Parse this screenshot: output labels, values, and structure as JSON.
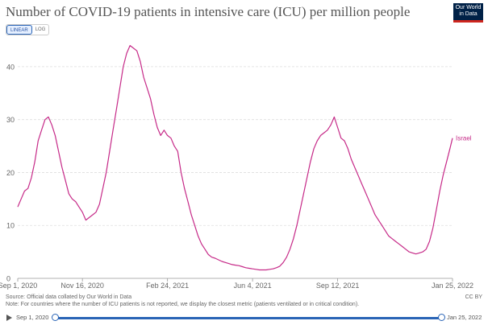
{
  "header": {
    "title": "Number of COVID-19 patients in intensive care (ICU) per million people",
    "logo_line1": "Our World",
    "logo_line2": "in Data"
  },
  "controls": {
    "linear_label": "LINEAR",
    "log_label": "LOG",
    "active": "linear"
  },
  "footer": {
    "source": "Source: Official data collated by Our World in Data",
    "note": "Note: For countries where the number of ICU patients is not reported, we display the closest metric (patients ventilated or in critical condition).",
    "license": "CC BY"
  },
  "timeline": {
    "start_label": "Sep 1, 2020",
    "end_label": "Jan 25, 2022"
  },
  "colors": {
    "series": "#c62a88",
    "grid": "#dddddd",
    "axis_text": "#666666",
    "timeline": "#2a64b6"
  },
  "chart_data": {
    "type": "line",
    "title": "Number of COVID-19 patients in intensive care (ICU) per million people",
    "xlabel": "",
    "ylabel": "",
    "x_range": [
      "2020-09-01",
      "2022-01-25"
    ],
    "ylim": [
      0,
      45
    ],
    "yticks": [
      0,
      10,
      20,
      30,
      40
    ],
    "xtick_labels": [
      {
        "date": "2020-09-01",
        "label": "Sep 1, 2020"
      },
      {
        "date": "2020-11-16",
        "label": "Nov 16, 2020"
      },
      {
        "date": "2021-02-24",
        "label": "Feb 24, 2021"
      },
      {
        "date": "2021-06-04",
        "label": "Jun 4, 2021"
      },
      {
        "date": "2021-09-12",
        "label": "Sep 12, 2021"
      },
      {
        "date": "2022-01-25",
        "label": "Jan 25, 2022"
      }
    ],
    "grid": "horizontal",
    "series": [
      {
        "name": "Israel",
        "points": [
          [
            "2020-09-01",
            13.5
          ],
          [
            "2020-09-05",
            15.0
          ],
          [
            "2020-09-09",
            16.5
          ],
          [
            "2020-09-13",
            17.0
          ],
          [
            "2020-09-17",
            19.0
          ],
          [
            "2020-09-21",
            22.0
          ],
          [
            "2020-09-25",
            26.0
          ],
          [
            "2020-09-29",
            28.0
          ],
          [
            "2020-10-03",
            30.0
          ],
          [
            "2020-10-07",
            30.5
          ],
          [
            "2020-10-11",
            29.0
          ],
          [
            "2020-10-15",
            27.0
          ],
          [
            "2020-10-19",
            24.0
          ],
          [
            "2020-10-23",
            21.0
          ],
          [
            "2020-10-27",
            18.5
          ],
          [
            "2020-10-31",
            16.0
          ],
          [
            "2020-11-04",
            15.0
          ],
          [
            "2020-11-08",
            14.5
          ],
          [
            "2020-11-12",
            13.5
          ],
          [
            "2020-11-16",
            12.5
          ],
          [
            "2020-11-20",
            11.0
          ],
          [
            "2020-11-24",
            11.5
          ],
          [
            "2020-11-28",
            12.0
          ],
          [
            "2020-12-02",
            12.5
          ],
          [
            "2020-12-06",
            14.0
          ],
          [
            "2020-12-10",
            17.0
          ],
          [
            "2020-12-14",
            20.0
          ],
          [
            "2020-12-18",
            24.0
          ],
          [
            "2020-12-22",
            28.0
          ],
          [
            "2020-12-26",
            32.0
          ],
          [
            "2020-12-30",
            36.0
          ],
          [
            "2021-01-03",
            40.0
          ],
          [
            "2021-01-07",
            42.5
          ],
          [
            "2021-01-11",
            44.0
          ],
          [
            "2021-01-15",
            43.5
          ],
          [
            "2021-01-19",
            43.0
          ],
          [
            "2021-01-23",
            41.0
          ],
          [
            "2021-01-27",
            38.0
          ],
          [
            "2021-01-31",
            36.0
          ],
          [
            "2021-02-04",
            34.0
          ],
          [
            "2021-02-08",
            31.0
          ],
          [
            "2021-02-12",
            28.5
          ],
          [
            "2021-02-16",
            27.0
          ],
          [
            "2021-02-20",
            28.0
          ],
          [
            "2021-02-24",
            27.0
          ],
          [
            "2021-02-28",
            26.5
          ],
          [
            "2021-03-04",
            25.0
          ],
          [
            "2021-03-08",
            24.0
          ],
          [
            "2021-03-12",
            20.0
          ],
          [
            "2021-03-16",
            17.0
          ],
          [
            "2021-03-20",
            14.5
          ],
          [
            "2021-03-24",
            12.0
          ],
          [
            "2021-03-28",
            10.0
          ],
          [
            "2021-04-01",
            8.0
          ],
          [
            "2021-04-05",
            6.5
          ],
          [
            "2021-04-09",
            5.5
          ],
          [
            "2021-04-13",
            4.5
          ],
          [
            "2021-04-17",
            4.0
          ],
          [
            "2021-04-21",
            3.8
          ],
          [
            "2021-04-25",
            3.5
          ],
          [
            "2021-04-29",
            3.2
          ],
          [
            "2021-05-03",
            3.0
          ],
          [
            "2021-05-07",
            2.8
          ],
          [
            "2021-05-11",
            2.6
          ],
          [
            "2021-05-15",
            2.5
          ],
          [
            "2021-05-19",
            2.4
          ],
          [
            "2021-05-23",
            2.2
          ],
          [
            "2021-05-27",
            2.0
          ],
          [
            "2021-05-31",
            1.9
          ],
          [
            "2021-06-04",
            1.8
          ],
          [
            "2021-06-08",
            1.7
          ],
          [
            "2021-06-12",
            1.6
          ],
          [
            "2021-06-16",
            1.6
          ],
          [
            "2021-06-20",
            1.6
          ],
          [
            "2021-06-24",
            1.7
          ],
          [
            "2021-06-28",
            1.8
          ],
          [
            "2021-07-02",
            2.0
          ],
          [
            "2021-07-06",
            2.3
          ],
          [
            "2021-07-10",
            3.0
          ],
          [
            "2021-07-14",
            4.0
          ],
          [
            "2021-07-18",
            5.5
          ],
          [
            "2021-07-22",
            7.5
          ],
          [
            "2021-07-26",
            10.0
          ],
          [
            "2021-07-30",
            13.0
          ],
          [
            "2021-08-03",
            16.0
          ],
          [
            "2021-08-07",
            19.0
          ],
          [
            "2021-08-11",
            22.0
          ],
          [
            "2021-08-15",
            24.5
          ],
          [
            "2021-08-19",
            26.0
          ],
          [
            "2021-08-23",
            27.0
          ],
          [
            "2021-08-27",
            27.5
          ],
          [
            "2021-08-31",
            28.0
          ],
          [
            "2021-09-04",
            29.0
          ],
          [
            "2021-09-08",
            30.5
          ],
          [
            "2021-09-12",
            28.5
          ],
          [
            "2021-09-16",
            26.5
          ],
          [
            "2021-09-20",
            26.0
          ],
          [
            "2021-09-24",
            24.5
          ],
          [
            "2021-09-28",
            22.5
          ],
          [
            "2021-10-02",
            21.0
          ],
          [
            "2021-10-06",
            19.5
          ],
          [
            "2021-10-10",
            18.0
          ],
          [
            "2021-10-14",
            16.5
          ],
          [
            "2021-10-18",
            15.0
          ],
          [
            "2021-10-22",
            13.5
          ],
          [
            "2021-10-26",
            12.0
          ],
          [
            "2021-10-30",
            11.0
          ],
          [
            "2021-11-03",
            10.0
          ],
          [
            "2021-11-07",
            9.0
          ],
          [
            "2021-11-11",
            8.0
          ],
          [
            "2021-11-15",
            7.5
          ],
          [
            "2021-11-19",
            7.0
          ],
          [
            "2021-11-23",
            6.5
          ],
          [
            "2021-11-27",
            6.0
          ],
          [
            "2021-12-01",
            5.5
          ],
          [
            "2021-12-05",
            5.0
          ],
          [
            "2021-12-09",
            4.8
          ],
          [
            "2021-12-13",
            4.6
          ],
          [
            "2021-12-17",
            4.8
          ],
          [
            "2021-12-21",
            5.0
          ],
          [
            "2021-12-25",
            5.5
          ],
          [
            "2021-12-29",
            7.0
          ],
          [
            "2022-01-02",
            9.5
          ],
          [
            "2022-01-06",
            13.0
          ],
          [
            "2022-01-10",
            16.5
          ],
          [
            "2022-01-14",
            19.5
          ],
          [
            "2022-01-18",
            22.0
          ],
          [
            "2022-01-22",
            24.5
          ],
          [
            "2022-01-25",
            26.5
          ]
        ]
      }
    ]
  }
}
